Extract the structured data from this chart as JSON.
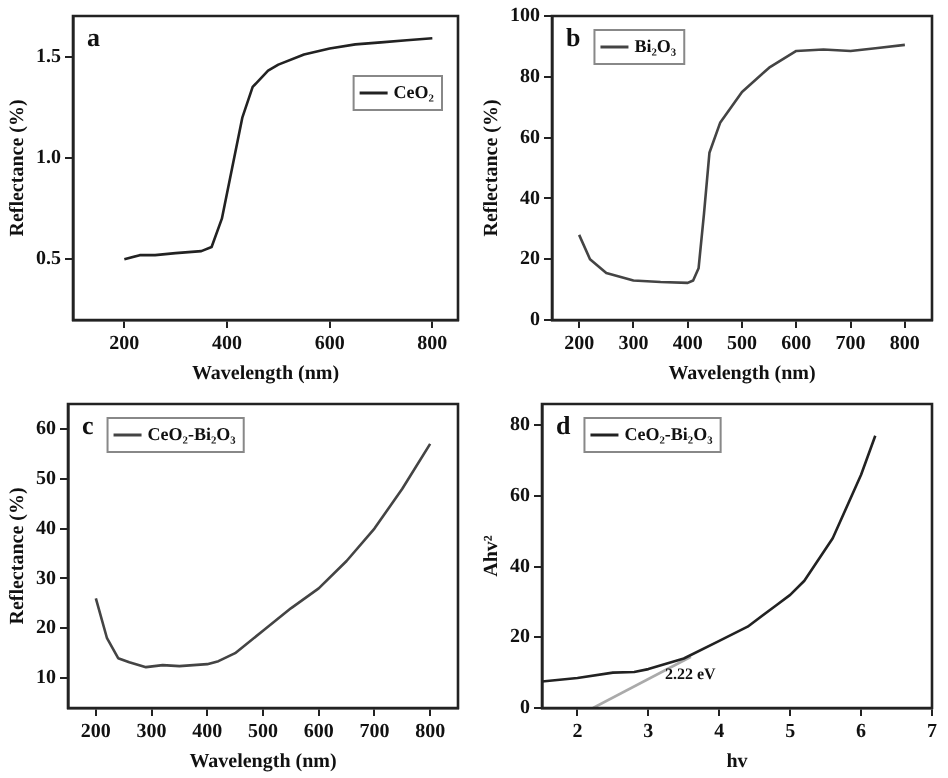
{
  "chart_data": [
    {
      "type": "line",
      "xlabel": "Wavelength (nm)",
      "ylabel": "Reflectance (%)",
      "annotations": [
        "a"
      ],
      "legend": "top right",
      "grid": false,
      "marker": "none",
      "xlim": [
        100,
        850
      ],
      "xticks": [
        200,
        400,
        600,
        800
      ],
      "ylim": [
        0.2,
        1.7
      ],
      "yticks": [
        0.5,
        {
          "value": 1,
          "label": "1.0"
        },
        1.5
      ],
      "series": [
        {
          "name": "CeO₂",
          "color": "#222222",
          "x": [
            200,
            230,
            260,
            300,
            350,
            370,
            390,
            410,
            430,
            450,
            480,
            500,
            550,
            600,
            650,
            700,
            750,
            800
          ],
          "values": [
            0.5,
            0.52,
            0.52,
            0.53,
            0.54,
            0.56,
            0.7,
            0.95,
            1.2,
            1.35,
            1.43,
            1.46,
            1.51,
            1.54,
            1.56,
            1.57,
            1.58,
            1.59
          ]
        }
      ]
    },
    {
      "type": "line",
      "xlabel": "Wavelength (nm)",
      "ylabel": "Reflectance (%)",
      "annotations": [
        "b"
      ],
      "legend": "top left",
      "grid": false,
      "marker": "none",
      "xlim": [
        150,
        850
      ],
      "xticks": [
        200,
        300,
        400,
        500,
        600,
        700,
        800
      ],
      "ylim": [
        0,
        100
      ],
      "yticks": [
        0,
        20,
        40,
        60,
        80,
        100
      ],
      "series": [
        {
          "name": "Bi₂O₃",
          "color": "#444444",
          "x": [
            200,
            220,
            250,
            300,
            350,
            400,
            410,
            420,
            430,
            440,
            460,
            500,
            550,
            600,
            650,
            700,
            750,
            800
          ],
          "values": [
            28,
            20,
            15.5,
            13,
            12.5,
            12.2,
            13,
            17,
            35,
            55,
            65,
            75,
            83,
            88.5,
            89,
            88.5,
            89.5,
            90.5
          ]
        }
      ]
    },
    {
      "type": "line",
      "xlabel": "Wavelength (nm)",
      "ylabel": "Reflectance (%)",
      "annotations": [
        "c"
      ],
      "legend": "top left",
      "grid": false,
      "marker": "none",
      "xlim": [
        150,
        850
      ],
      "xticks": [
        200,
        300,
        400,
        500,
        600,
        700,
        800
      ],
      "ylim": [
        4,
        65
      ],
      "yticks": [
        10,
        20,
        30,
        40,
        50,
        60
      ],
      "series": [
        {
          "name": "CeO₂-Bi₂O₃",
          "color": "#444444",
          "x": [
            200,
            220,
            240,
            260,
            290,
            320,
            350,
            400,
            420,
            450,
            500,
            550,
            600,
            650,
            700,
            750,
            800
          ],
          "values": [
            26,
            18,
            14,
            13.2,
            12.2,
            12.6,
            12.4,
            12.8,
            13.4,
            15,
            19.5,
            24,
            28,
            33.5,
            40,
            48,
            57
          ]
        }
      ]
    },
    {
      "type": "line",
      "xlabel": "hv",
      "ylabel": "Ahv²",
      "annotations": [
        "d",
        "2.22 eV"
      ],
      "legend": "top left",
      "grid": false,
      "marker": "none",
      "xlim": [
        1.5,
        7
      ],
      "xticks": [
        2,
        3,
        4,
        5,
        6,
        7
      ],
      "ylim": [
        0,
        86
      ],
      "yticks": [
        0,
        20,
        40,
        60,
        80
      ],
      "series": [
        {
          "name": "CeO₂-Bi₂O₃",
          "color": "#222222",
          "x": [
            1.5,
            2,
            2.5,
            2.8,
            3,
            3.5,
            4,
            4.4,
            4.8,
            5,
            5.2,
            5.6,
            6,
            6.2
          ],
          "values": [
            7.5,
            8.5,
            10,
            10.2,
            11,
            14,
            19,
            23,
            29,
            32,
            36,
            48,
            66,
            77
          ]
        },
        {
          "type": "line",
          "color": "#aaaaaa",
          "x": [
            2.22,
            3.6
          ],
          "values": [
            0,
            14.5
          ]
        }
      ]
    }
  ]
}
